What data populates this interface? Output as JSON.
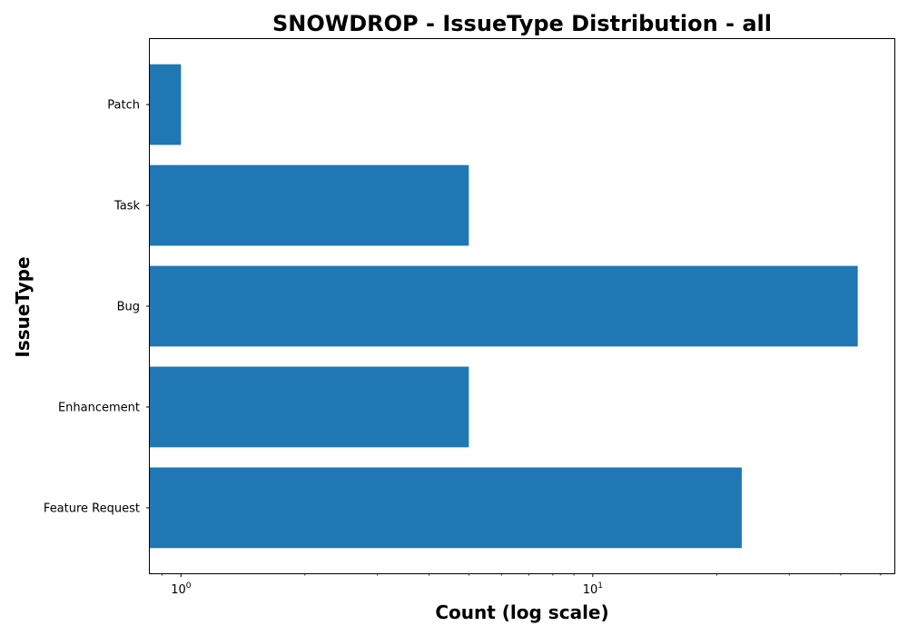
{
  "chart_data": {
    "type": "bar",
    "orientation": "horizontal",
    "title": "SNOWDROP - IssueType Distribution - all",
    "xlabel": "Count (log scale)",
    "ylabel": "IssueType",
    "x_scale": "log",
    "xlim": [
      0.84,
      54
    ],
    "categories": [
      "Feature Request",
      "Enhancement",
      "Bug",
      "Task",
      "Patch"
    ],
    "values": [
      23,
      5,
      44,
      5,
      1
    ],
    "x_ticks": [
      {
        "value": 1,
        "base": "10",
        "exponent": "0"
      },
      {
        "value": 10,
        "base": "10",
        "exponent": "1"
      }
    ],
    "grid": false,
    "bar_color": "#1f77b4"
  }
}
